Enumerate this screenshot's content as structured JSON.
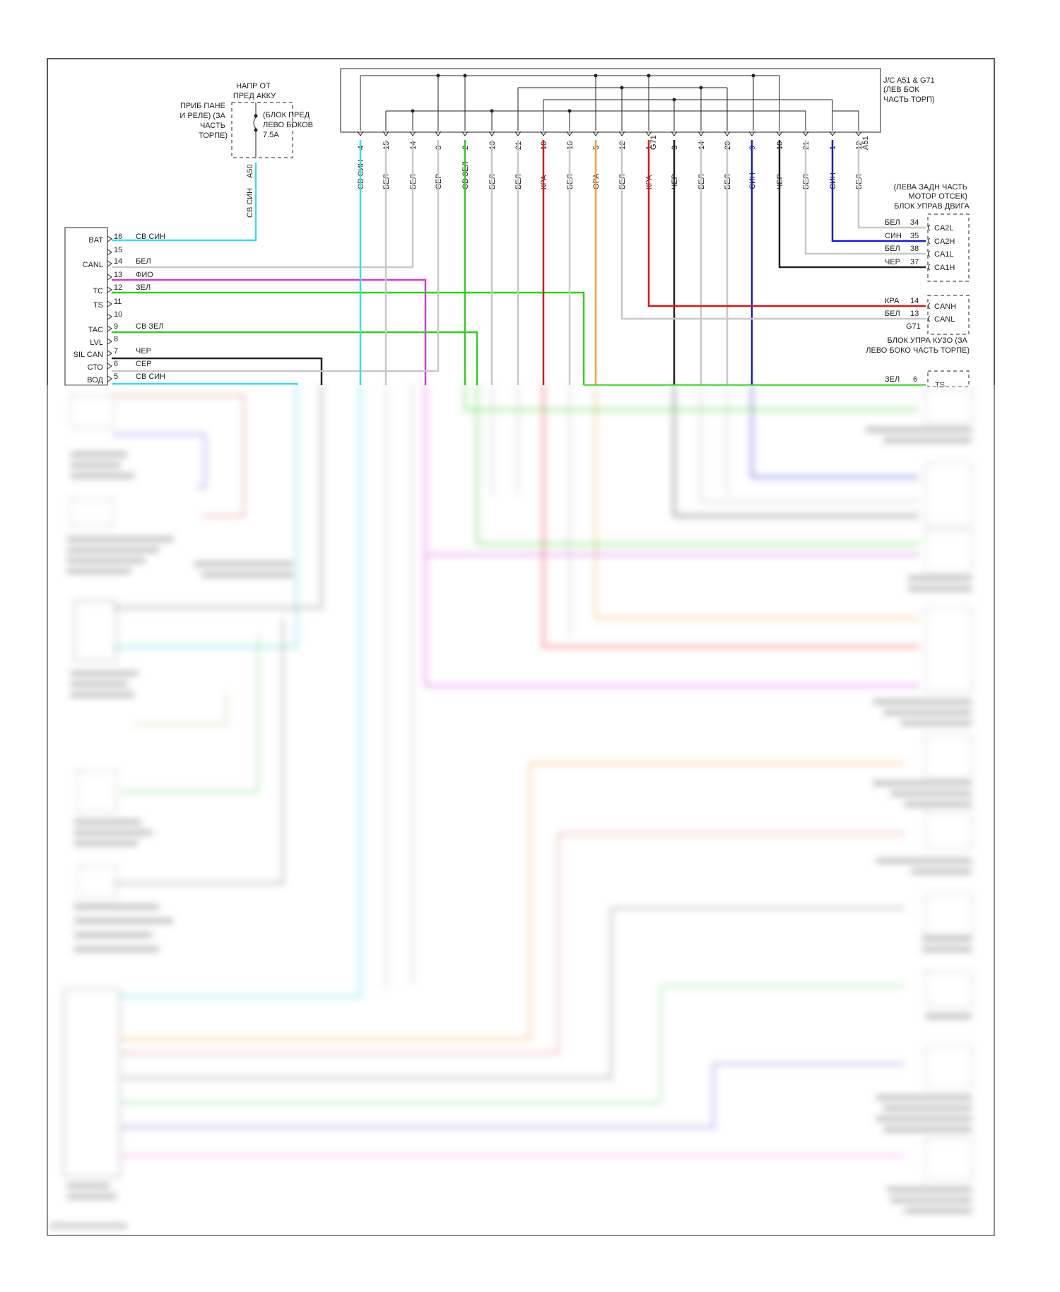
{
  "diagram": {
    "junction_connector": [
      "J/C A51 & G71",
      "(ЛЕВ БОК",
      "ЧАСТЬ ТОРП)"
    ],
    "power_source": [
      "НАПР ОТ",
      "ПРЕД АККУ"
    ],
    "fuse_label": [
      "ПРИБ ПАНЕ",
      "И РЕЛЕ) (ЗА",
      "ЧАСТЬ",
      "ТОРПЕ)"
    ],
    "fuse_block": [
      "(БЛОК ПРЕД",
      "ЛЕВО БОКОВ",
      "7.5A"
    ],
    "fuse_connector": "A50",
    "fuse_wire": "СВ СИН",
    "bus_terminals": [
      "4",
      "15",
      "14",
      "3",
      "2",
      "13",
      "21",
      "10",
      "16",
      "5",
      "12",
      "1",
      "3",
      "14",
      "20",
      "9",
      "10",
      "21",
      "1",
      "12"
    ],
    "bus_wire_colors": [
      "СВ СИН",
      "БЕЛ",
      "БЕЛ",
      "СЕР",
      "СВ ЗЕЛ",
      "БЕЛ",
      "БЕЛ",
      "КРА",
      "БЕЛ",
      "ОРА",
      "БЕЛ",
      "КРА",
      "ЧЕР",
      "БЕЛ",
      "БЕЛ",
      "СИН",
      "ЧЕР",
      "БЕЛ",
      "СИН",
      "БЕЛ"
    ],
    "bus_connector_g71": "G71",
    "bus_connector_a51": "A51",
    "left_module_pins": [
      {
        "label": "BAT",
        "pin": "16",
        "wire": "СВ СИН"
      },
      {
        "label": "",
        "pin": "15",
        "wire": ""
      },
      {
        "label": "CANL",
        "pin": "14",
        "wire": "БЕЛ"
      },
      {
        "label": "",
        "pin": "13",
        "wire": "ФИО"
      },
      {
        "label": "TC",
        "pin": "12",
        "wire": "ЗЕЛ"
      },
      {
        "label": "TS",
        "pin": "11",
        "wire": ""
      },
      {
        "label": "",
        "pin": "10",
        "wire": ""
      },
      {
        "label": "TAC",
        "pin": "9",
        "wire": "СВ ЗЕЛ"
      },
      {
        "label": "LVL",
        "pin": "8",
        "wire": ""
      },
      {
        "label": "SIL CAN",
        "pin": "7",
        "wire": "ЧЕР"
      },
      {
        "label": "СТО",
        "pin": "6",
        "wire": "СЕР"
      },
      {
        "label": "ВОД",
        "pin": "5",
        "wire": "СВ СИН"
      }
    ],
    "engine_ecu_title": [
      "(ЛЕВА ЗАДН ЧАСТЬ",
      "МОТОР ОТСЕК)",
      "БЛОК УПРАВ ДВИГА"
    ],
    "engine_ecu_pins": [
      {
        "wire": "БЕЛ",
        "pin": "34",
        "label": "CA2L"
      },
      {
        "wire": "СИН",
        "pin": "35",
        "label": "CA2H"
      },
      {
        "wire": "БЕЛ",
        "pin": "38",
        "label": "CA1L"
      },
      {
        "wire": "ЧЕР",
        "pin": "37",
        "label": "CA1H"
      }
    ],
    "body_ecu_pins": [
      {
        "wire": "КРА",
        "pin": "14",
        "label": "CANH"
      },
      {
        "wire": "БЕЛ",
        "pin": "13",
        "label": "CANL"
      }
    ],
    "body_ecu_connector": "G71",
    "body_ecu_title": [
      "БЛОК УПРА КУЗО (ЗА",
      "ЛЕВО БОКО ЧАСТЬ ТОРПЕ)"
    ],
    "ts_pin": {
      "wire": "ЗЕЛ",
      "pin": "6",
      "label": "TS"
    }
  },
  "colors": {
    "light_blue": "#3fd9e8",
    "green": "#33cc22",
    "red": "#e01414",
    "orange": "#f0a040",
    "magenta": "#d23ad2",
    "blue": "#1a1ac8",
    "black": "#222222",
    "white_wire": "#c8c8c8",
    "gray": "#8a8a8a"
  }
}
